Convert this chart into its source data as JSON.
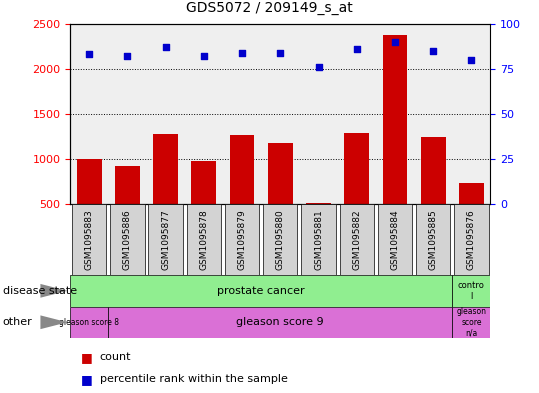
{
  "title": "GDS5072 / 209149_s_at",
  "samples": [
    "GSM1095883",
    "GSM1095886",
    "GSM1095877",
    "GSM1095878",
    "GSM1095879",
    "GSM1095880",
    "GSM1095881",
    "GSM1095882",
    "GSM1095884",
    "GSM1095885",
    "GSM1095876"
  ],
  "counts": [
    1000,
    920,
    1280,
    975,
    1265,
    1175,
    510,
    1290,
    2370,
    1240,
    740
  ],
  "percentiles": [
    83,
    82,
    87,
    82,
    84,
    84,
    76,
    86,
    90,
    85,
    80
  ],
  "ylim_left": [
    500,
    2500
  ],
  "ylim_right": [
    0,
    100
  ],
  "yticks_left": [
    500,
    1000,
    1500,
    2000,
    2500
  ],
  "yticks_right": [
    0,
    25,
    50,
    75,
    100
  ],
  "bar_color": "#cc0000",
  "dot_color": "#0000cc",
  "bar_bottom": 500,
  "grid_lines": [
    1000,
    1500,
    2000
  ],
  "col_bg_color": "#d3d3d3",
  "disease_color": "#90ee90",
  "gleason_color": "#da70d6",
  "legend_items": [
    {
      "color": "#cc0000",
      "label": "count"
    },
    {
      "color": "#0000cc",
      "label": "percentile rank within the sample"
    }
  ]
}
